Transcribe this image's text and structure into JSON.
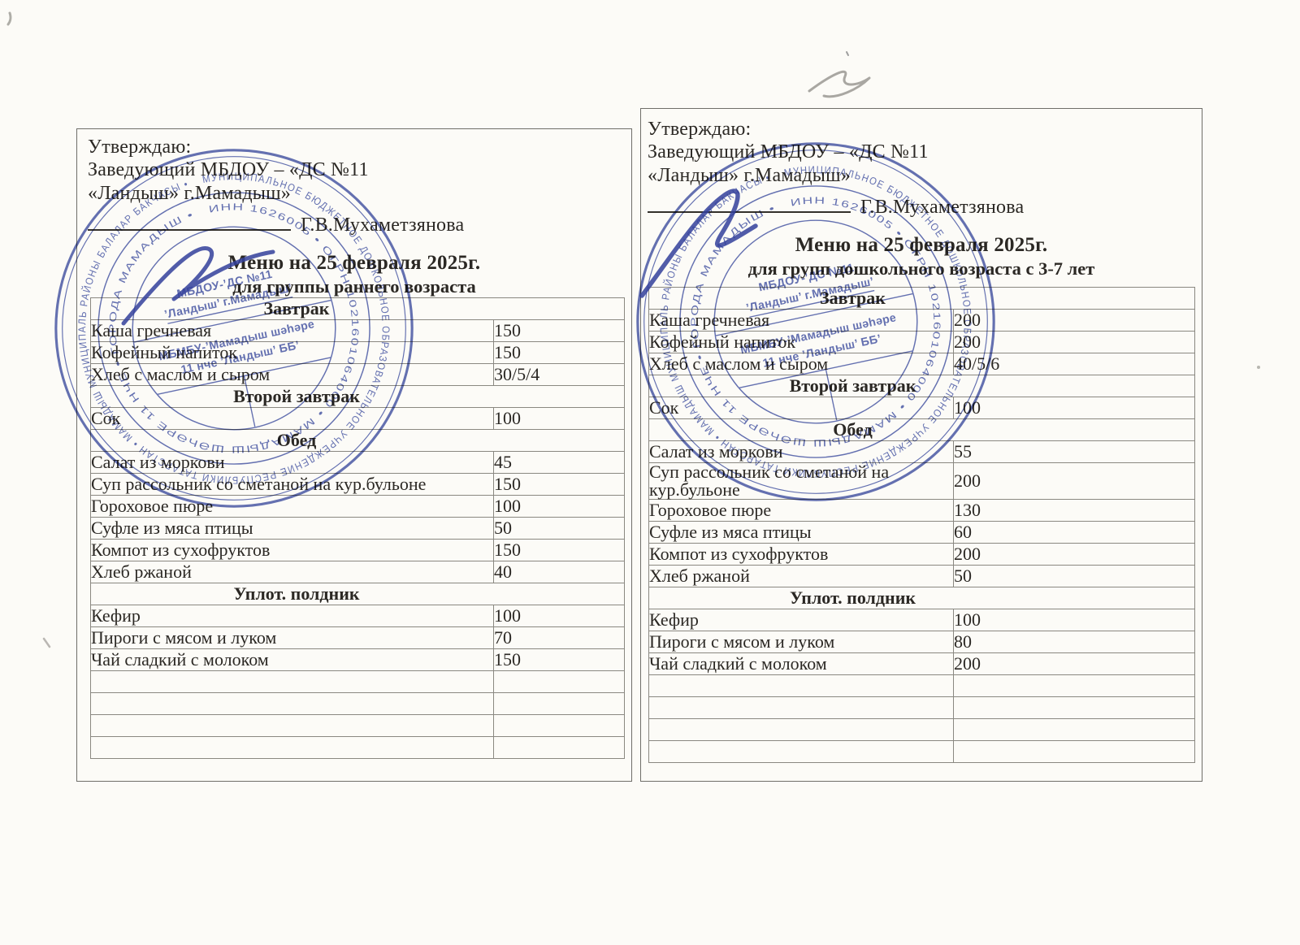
{
  "document_kind": "Scanned approved kindergarten daily menu, two pages side by side",
  "colors": {
    "paper": "#fcfbf7",
    "ink": "#2b2824",
    "table_line": "#8a8881",
    "stamp_blue": "#3e4fa4",
    "signature_blue": "#32409b"
  },
  "stamp": {
    "center_line1": "МБДОУ-’ДС №11",
    "center_line2": "’Ландыш’ г.Мамадыш’",
    "center_line3": "МБМБУ-’Мамадыш шәһәре",
    "center_line4": "11 нче ’Ландыш’ ББ’",
    "ring_outer": "МУНИЦИПАЛЬНОЕ БЮДЖЕТНОЕ ДОШКОЛЬНОЕ ОБРАЗОВАТЕЛЬНОЕ УЧРЕЖДЕНИЕ РЕСПУБЛИКИ ТАТАРСТАН • МАМАДЫШ МУНИЦИПАЛЬ РАЙОНЫ БАЛАЛАР БАКЧАСЫ • ",
    "ring_inner": "ИНН 1626005 • ОГРН 1021601064000 • МАМАДЫШ ШӘҺӘРЕ 11 НЧЕ • ГОРОДА МАМАДЫШ • "
  },
  "pages": [
    {
      "approval": {
        "line1": "Утверждаю:",
        "line2": "Заведующий МБДОУ – «ДС №11",
        "line3": "«Ландыш» г.Мамадыш»",
        "signature_name": "Г.В.Мухаметзянова"
      },
      "title": "Меню на 25 февраля 2025г.",
      "subtitle": "для группы раннего возраста",
      "menu": {
        "sections": [
          {
            "header": "Завтрак",
            "items": [
              {
                "dish": "Каша гречневая",
                "portion": "150"
              },
              {
                "dish": "Кофейный напиток",
                "portion": "150"
              },
              {
                "dish": "Хлеб с маслом и сыром",
                "portion": "30/5/4"
              }
            ]
          },
          {
            "header": "Второй завтрак",
            "items": [
              {
                "dish": "Сок",
                "portion": "100"
              }
            ]
          },
          {
            "header": "Обед",
            "items": [
              {
                "dish": "Салат из моркови",
                "portion": "45"
              },
              {
                "dish": "Суп рассольник со сметаной на кур.бульоне",
                "portion": "150"
              },
              {
                "dish": "Гороховое пюре",
                "portion": "100"
              },
              {
                "dish": "Суфле из мяса птицы",
                "portion": "50"
              },
              {
                "dish": "Компот из сухофруктов",
                "portion": "150"
              },
              {
                "dish": "Хлеб ржаной",
                "portion": "40"
              }
            ]
          },
          {
            "header": "Уплот. полдник",
            "items": [
              {
                "dish": "Кефир",
                "portion": "100"
              },
              {
                "dish": "Пироги с мясом и луком",
                "portion": "70"
              },
              {
                "dish": "Чай сладкий с молоком",
                "portion": "150"
              }
            ]
          }
        ],
        "empty_rows": 4
      }
    },
    {
      "approval": {
        "line1": "Утверждаю:",
        "line2": "Заведующий МБДОУ – «ДС №11",
        "line3": "«Ландыш» г.Мамадыш»",
        "signature_name": "Г.В.Мухаметзянова"
      },
      "title": "Меню на 25 февраля 2025г.",
      "subtitle": "для групп дошкольного возраста с 3-7 лет",
      "menu": {
        "sections": [
          {
            "header": "Завтрак",
            "items": [
              {
                "dish": "Каша гречневая",
                "portion": "200"
              },
              {
                "dish": "Кофейный напиток",
                "portion": "200"
              },
              {
                "dish": "Хлеб с маслом и сыром",
                "portion": "40/5/6"
              }
            ]
          },
          {
            "header": "Второй завтрак",
            "items": [
              {
                "dish": "Сок",
                "portion": "100"
              }
            ]
          },
          {
            "header": "Обед",
            "items": [
              {
                "dish": "Салат из моркови",
                "portion": "55"
              },
              {
                "dish": "Суп рассольник со сметаной на кур.бульоне",
                "portion": "200"
              },
              {
                "dish": "Гороховое пюре",
                "portion": "130"
              },
              {
                "dish": "Суфле из мяса птицы",
                "portion": "60"
              },
              {
                "dish": "Компот из сухофруктов",
                "portion": "200"
              },
              {
                "dish": "Хлеб ржаной",
                "portion": "50"
              }
            ]
          },
          {
            "header": "Уплот. полдник",
            "items": [
              {
                "dish": "Кефир",
                "portion": "100"
              },
              {
                "dish": "Пироги с мясом и луком",
                "portion": "80"
              },
              {
                "dish": "Чай сладкий с молоком",
                "portion": "200"
              }
            ]
          }
        ],
        "empty_rows": 4
      }
    }
  ]
}
